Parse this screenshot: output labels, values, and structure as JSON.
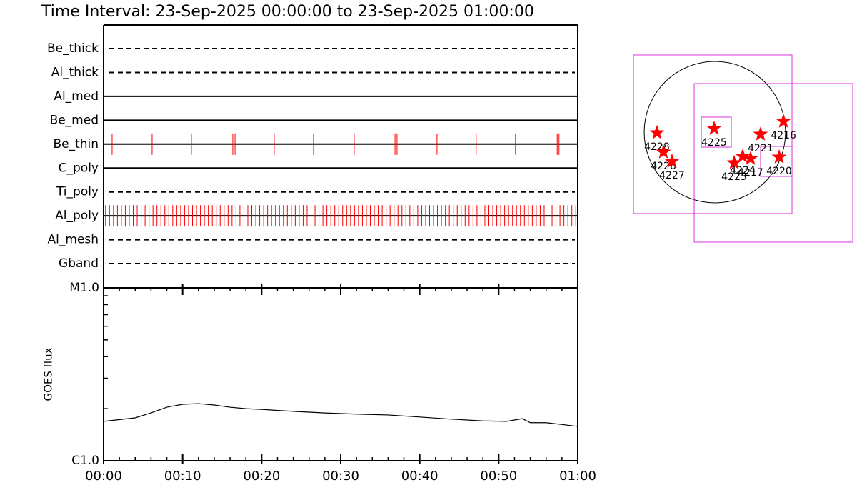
{
  "chart_data": [
    {
      "type": "timeline",
      "title": "Time Interval: 23-Sep-2025 00:00:00 to 23-Sep-2025 01:00:00",
      "xlim": [
        0,
        60
      ],
      "mark_color": "#ff0000",
      "rows": [
        {
          "label": "Be_thick",
          "style": "dashed",
          "times": []
        },
        {
          "label": "Al_thick",
          "style": "dashed",
          "times": []
        },
        {
          "label": "Al_med",
          "style": "solid",
          "times": []
        },
        {
          "label": "Be_med",
          "style": "solid",
          "times": []
        },
        {
          "label": "Be_thin",
          "style": "solid",
          "times": [
            1.08,
            6.14,
            11.11,
            16.35,
            16.53,
            16.71,
            21.59,
            26.56,
            31.71,
            36.77,
            36.95,
            37.13,
            42.19,
            47.15,
            52.12,
            57.27,
            57.45,
            57.63
          ]
        },
        {
          "label": "C_poly",
          "style": "solid",
          "times": []
        },
        {
          "label": "Ti_poly",
          "style": "dashed",
          "times": []
        },
        {
          "label": "Al_poly",
          "style": "solid",
          "times": [
            0.25,
            0.75,
            1.25,
            1.75,
            2.25,
            2.75,
            3.25,
            3.75,
            4.25,
            4.75,
            5.25,
            5.75,
            6.25,
            6.75,
            7.25,
            7.75,
            8.25,
            8.75,
            9.25,
            9.75,
            10.25,
            10.75,
            11.25,
            11.75,
            12.25,
            12.75,
            13.25,
            13.75,
            14.25,
            14.75,
            15.25,
            15.75,
            16.25,
            16.75,
            17.25,
            17.75,
            18.25,
            18.75,
            19.25,
            19.75,
            20.25,
            20.75,
            21.25,
            21.75,
            22.25,
            22.75,
            23.25,
            23.75,
            24.25,
            24.75,
            25.25,
            25.75,
            26.25,
            26.75,
            27.25,
            27.75,
            28.25,
            28.75,
            29.25,
            29.75,
            30.25,
            30.75,
            31.25,
            31.75,
            32.25,
            32.75,
            33.25,
            33.75,
            34.25,
            34.75,
            35.25,
            35.75,
            36.25,
            36.75,
            37.25,
            37.75,
            38.25,
            38.75,
            39.25,
            39.75,
            40.25,
            40.75,
            41.25,
            41.75,
            42.25,
            42.75,
            43.25,
            43.75,
            44.25,
            44.75,
            45.25,
            45.75,
            46.25,
            46.75,
            47.25,
            47.75,
            48.25,
            48.75,
            49.25,
            49.75,
            50.25,
            50.75,
            51.25,
            51.75,
            52.25,
            52.75,
            53.25,
            53.75,
            54.25,
            54.75,
            55.25,
            55.75,
            56.25,
            56.75,
            57.25,
            57.75,
            58.25,
            58.75,
            59.25,
            59.75
          ]
        },
        {
          "label": "Al_mesh",
          "style": "dashed",
          "times": []
        },
        {
          "label": "Gband",
          "style": "dashed",
          "times": []
        }
      ]
    },
    {
      "type": "line",
      "ylabel": "GOES flux",
      "log_y": true,
      "color": "#000000",
      "xlim": [
        0,
        60
      ],
      "xticks": [
        {
          "value": 0,
          "label": "00:00"
        },
        {
          "value": 10,
          "label": "00:10"
        },
        {
          "value": 20,
          "label": "00:20"
        },
        {
          "value": 30,
          "label": "00:30"
        },
        {
          "value": 40,
          "label": "00:40"
        },
        {
          "value": 50,
          "label": "00:50"
        },
        {
          "value": 60,
          "label": "01:00"
        }
      ],
      "minor_xticks": [
        2,
        4,
        6,
        8,
        12,
        14,
        16,
        18,
        22,
        24,
        26,
        28,
        32,
        34,
        36,
        38,
        42,
        44,
        46,
        48,
        52,
        54,
        56,
        58
      ],
      "ylim": [
        1e-06,
        1e-05
      ],
      "yticks": [
        {
          "value": 1e-06,
          "label": "C1.0"
        },
        {
          "value": 1e-05,
          "label": "M1.0"
        }
      ],
      "minor_yticks": [
        2e-06,
        3e-06,
        4e-06,
        5e-06,
        6e-06,
        7e-06,
        8e-06,
        9e-06
      ],
      "x": [
        0,
        4,
        6,
        8,
        10,
        12,
        14,
        16,
        18,
        20,
        24,
        28,
        32,
        36,
        40,
        44,
        48,
        51,
        52,
        53,
        54,
        56,
        58,
        60
      ],
      "values": [
        1.69e-06,
        1.77e-06,
        1.89e-06,
        2.04e-06,
        2.12e-06,
        2.14e-06,
        2.1e-06,
        2.04e-06,
        2e-06,
        1.98e-06,
        1.93e-06,
        1.89e-06,
        1.86e-06,
        1.84e-06,
        1.79e-06,
        1.74e-06,
        1.7e-06,
        1.69e-06,
        1.72e-06,
        1.75e-06,
        1.66e-06,
        1.66e-06,
        1.62e-06,
        1.58e-06
      ]
    },
    {
      "type": "map",
      "radius": 950,
      "star_color": "#ff0000",
      "box_color": "#dd33dd",
      "boxes": [
        [
          -1094,
          -1094,
          1037,
          1037
        ],
        [
          -278,
          -1478,
          1853,
          653
        ],
        [
          -182,
          -202,
          221,
          202
        ],
        [
          614,
          -595,
          1037,
          -192
        ]
      ],
      "stars": [
        {
          "label": "4228",
          "x": -778,
          "y": -10
        },
        {
          "label": "4226",
          "x": -691,
          "y": -269
        },
        {
          "label": "4227",
          "x": -576,
          "y": -394
        },
        {
          "label": "4225",
          "x": -10,
          "y": 48
        },
        {
          "label": "4221",
          "x": 614,
          "y": -29
        },
        {
          "label": "4216",
          "x": 922,
          "y": 144
        },
        {
          "label": "4224",
          "x": 374,
          "y": -326
        },
        {
          "label": "4223",
          "x": 259,
          "y": -413
        },
        {
          "label": "4217",
          "x": 480,
          "y": -355
        },
        {
          "label": "4220",
          "x": 864,
          "y": -336
        }
      ]
    }
  ]
}
